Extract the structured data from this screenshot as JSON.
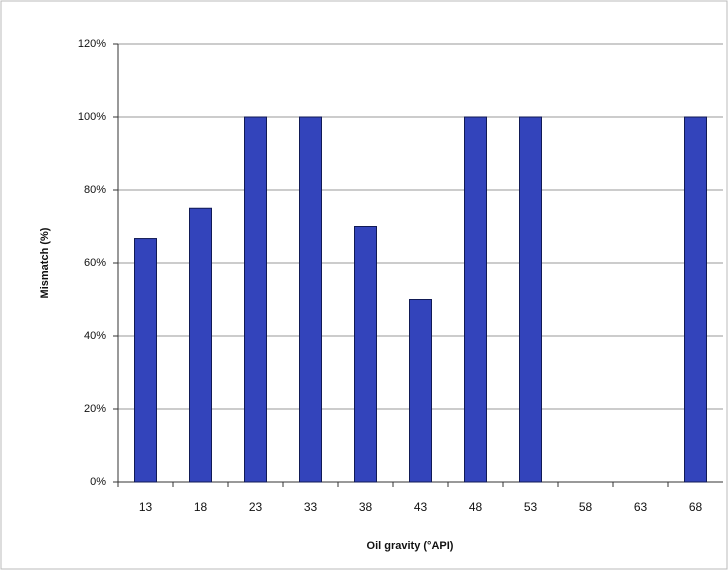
{
  "chart_data": {
    "type": "bar",
    "x_label": "Oil gravity (°API)",
    "y_label": "Mismatch (%)",
    "categories": [
      "13",
      "18",
      "23",
      "33",
      "38",
      "43",
      "48",
      "53",
      "58",
      "63",
      "68"
    ],
    "values": [
      66.7,
      75,
      100,
      100,
      70,
      50,
      100,
      100,
      0,
      0,
      100
    ],
    "color": "#3344bb",
    "ylim": [
      0,
      120
    ],
    "yticks": [
      {
        "value": 0,
        "label": "0%"
      },
      {
        "value": 20,
        "label": "20%"
      },
      {
        "value": 40,
        "label": "40%"
      },
      {
        "value": 60,
        "label": "60%"
      },
      {
        "value": 80,
        "label": "80%"
      },
      {
        "value": 100,
        "label": "100%"
      },
      {
        "value": 120,
        "label": "120%"
      }
    ],
    "grid": true
  }
}
